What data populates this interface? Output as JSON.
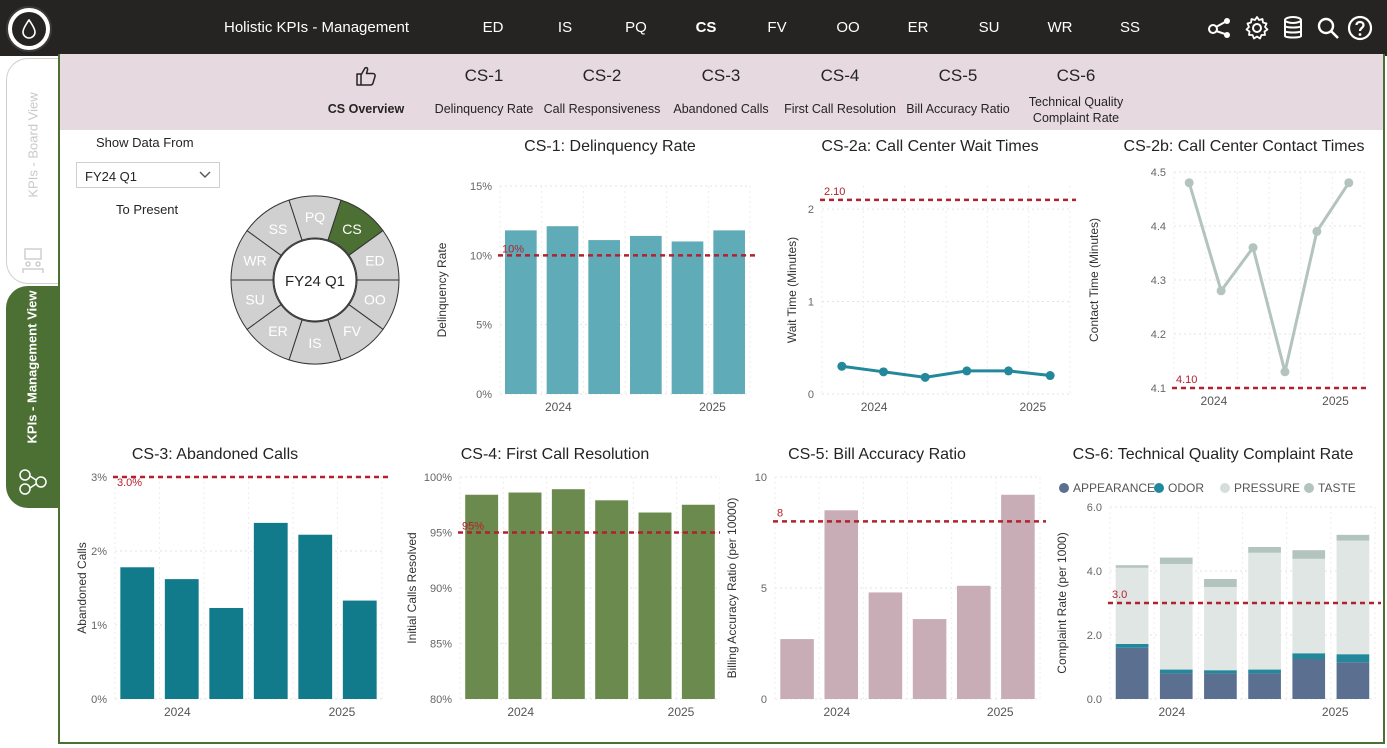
{
  "header": {
    "title": "Holistic KPIs - Management",
    "tabs": [
      {
        "label": "ED",
        "active": false
      },
      {
        "label": "IS",
        "active": false
      },
      {
        "label": "PQ",
        "active": false
      },
      {
        "label": "CS",
        "active": true
      },
      {
        "label": "FV",
        "active": false
      },
      {
        "label": "OO",
        "active": false
      },
      {
        "label": "ER",
        "active": false
      },
      {
        "label": "SU",
        "active": false
      },
      {
        "label": "WR",
        "active": false
      },
      {
        "label": "SS",
        "active": false
      }
    ],
    "icons": [
      "share-icon",
      "settings-icon",
      "database-icon",
      "search-icon",
      "help-icon"
    ]
  },
  "side_tabs": {
    "board": "KPIs - Board View",
    "management": "KPIs - Management View"
  },
  "subnav": [
    {
      "code": "",
      "label": "CS Overview",
      "icon": "thumbs-up-icon"
    },
    {
      "code": "CS-1",
      "label": "Delinquency Rate"
    },
    {
      "code": "CS-2",
      "label": "Call Responsiveness"
    },
    {
      "code": "CS-3",
      "label": "Abandoned Calls"
    },
    {
      "code": "CS-4",
      "label": "First Call Resolution"
    },
    {
      "code": "CS-5",
      "label": "Bill Accuracy Ratio"
    },
    {
      "code": "CS-6",
      "label": "Technical Quality Complaint Rate"
    }
  ],
  "filter": {
    "label": "Show Data From",
    "value": "FY24 Q1",
    "to_label": "To Present"
  },
  "wheel": {
    "center": "FY24 Q1",
    "segments": [
      "CS",
      "ED",
      "OO",
      "FV",
      "IS",
      "ER",
      "SU",
      "WR",
      "SS",
      "PQ"
    ],
    "active": "CS",
    "active_color": "#4c6f33",
    "segment_color": "#d0d0d0"
  },
  "chart_data": [
    {
      "id": "cs1",
      "type": "bar",
      "title": "CS-1: Delinquency Rate",
      "ylabel": "Delinquency Rate",
      "xlabel": "",
      "values": [
        11.8,
        12.1,
        11.1,
        11.4,
        11.0,
        11.8
      ],
      "ylim": [
        0,
        15
      ],
      "yticks": [
        "0%",
        "5%",
        "10%",
        "15%"
      ],
      "yticks_vals": [
        0,
        5,
        10,
        15
      ],
      "xticks": [
        {
          "i": 1,
          "label": "2024"
        },
        {
          "i": 5,
          "label": "2025"
        }
      ],
      "target": {
        "value": 10,
        "label": "10%"
      },
      "color": "#5fabb8"
    },
    {
      "id": "cs2a",
      "type": "line",
      "title": "CS-2a: Call Center Wait Times",
      "ylabel": "Wait Time (Minutes)",
      "xlabel": "",
      "values": [
        0.3,
        0.24,
        0.18,
        0.25,
        0.25,
        0.2
      ],
      "ylim": [
        0,
        2.25
      ],
      "yticks": [
        "0",
        "1",
        "2"
      ],
      "yticks_vals": [
        0,
        1,
        2
      ],
      "xticks": [
        {
          "i": 1,
          "label": "2024"
        },
        {
          "i": 5,
          "label": "2025"
        }
      ],
      "target": {
        "value": 2.1,
        "label": "2.10"
      },
      "color": "#23889b"
    },
    {
      "id": "cs2b",
      "type": "line",
      "title": "CS-2b: Call Center Contact Times",
      "ylabel": "Contact Time (Minutes)",
      "xlabel": "",
      "values": [
        4.48,
        4.28,
        4.36,
        4.13,
        4.39,
        4.48
      ],
      "ylim": [
        4.1,
        4.5
      ],
      "yticks": [
        "4.1",
        "4.2",
        "4.3",
        "4.4",
        "4.5"
      ],
      "yticks_vals": [
        4.1,
        4.2,
        4.3,
        4.4,
        4.5
      ],
      "xticks": [
        {
          "i": 1,
          "label": "2024"
        },
        {
          "i": 5,
          "label": "2025"
        }
      ],
      "target": {
        "value": 4.1,
        "label": "4.10"
      },
      "color": "#b3c3bd"
    },
    {
      "id": "cs3",
      "type": "bar",
      "title": "CS-3: Abandoned Calls",
      "ylabel": "Abandoned Calls",
      "xlabel": "",
      "values": [
        1.78,
        1.62,
        1.23,
        2.38,
        2.22,
        1.33
      ],
      "ylim": [
        0,
        3
      ],
      "yticks": [
        "0%",
        "1%",
        "2%",
        "3%"
      ],
      "yticks_vals": [
        0,
        1,
        2,
        3
      ],
      "xticks": [
        {
          "i": 1,
          "label": "2024"
        },
        {
          "i": 5,
          "label": "2025"
        }
      ],
      "target": {
        "value": 3.0,
        "label": "3.0%"
      },
      "color": "#117a8b"
    },
    {
      "id": "cs4",
      "type": "bar",
      "title": "CS-4: First Call Resolution",
      "ylabel": "Initial Calls Resolved",
      "xlabel": "",
      "values": [
        98.4,
        98.6,
        98.9,
        97.9,
        96.8,
        97.5
      ],
      "ylim": [
        80,
        100
      ],
      "yticks": [
        "80%",
        "85%",
        "90%",
        "95%",
        "100%"
      ],
      "yticks_vals": [
        80,
        85,
        90,
        95,
        100
      ],
      "xticks": [
        {
          "i": 1,
          "label": "2024"
        },
        {
          "i": 5,
          "label": "2025"
        }
      ],
      "target": {
        "value": 95,
        "label": "95%"
      },
      "color": "#6b8a4e"
    },
    {
      "id": "cs5",
      "type": "bar",
      "title": "CS-5: Bill Accuracy Ratio",
      "ylabel": "Billing Accuracy Ratio (per 10000)",
      "xlabel": "",
      "values": [
        2.7,
        8.5,
        4.8,
        3.6,
        5.1,
        9.2
      ],
      "ylim": [
        0,
        10
      ],
      "yticks": [
        "0",
        "5",
        "10"
      ],
      "yticks_vals": [
        0,
        5,
        10
      ],
      "xticks": [
        {
          "i": 1,
          "label": "2024"
        },
        {
          "i": 5,
          "label": "2025"
        }
      ],
      "target": {
        "value": 8,
        "label": "8"
      },
      "color": "#c9adb6"
    },
    {
      "id": "cs6",
      "type": "stacked_bar",
      "title": "CS-6: Technical Quality Complaint Rate",
      "ylabel": "Complaint Rate (per 1000)",
      "xlabel": "",
      "series": [
        {
          "name": "APPEARANCE",
          "color": "#5b6f91",
          "values": [
            1.6,
            0.8,
            0.8,
            0.8,
            1.25,
            1.15
          ]
        },
        {
          "name": "ODOR",
          "color": "#23889b",
          "values": [
            0.12,
            0.12,
            0.1,
            0.12,
            0.18,
            0.25
          ]
        },
        {
          "name": "PRESSURE",
          "color": "#dfe6e4",
          "values": [
            2.38,
            3.3,
            2.6,
            3.65,
            2.95,
            3.55
          ]
        },
        {
          "name": "TASTE",
          "color": "#b3c3bd",
          "values": [
            0.08,
            0.2,
            0.25,
            0.18,
            0.27,
            0.18
          ]
        }
      ],
      "ylim": [
        0,
        6
      ],
      "yticks": [
        "0.0",
        "2.0",
        "4.0",
        "6.0"
      ],
      "yticks_vals": [
        0,
        2,
        4,
        6
      ],
      "xticks": [
        {
          "i": 1,
          "label": "2024"
        },
        {
          "i": 5,
          "label": "2025"
        }
      ],
      "target": {
        "value": 3.0,
        "label": "3.0"
      },
      "legend": "top"
    }
  ],
  "colors": {
    "topbar": "#252423",
    "accent": "#4c6f33",
    "subnav": "#e6d9df",
    "target": "#b3202f"
  }
}
